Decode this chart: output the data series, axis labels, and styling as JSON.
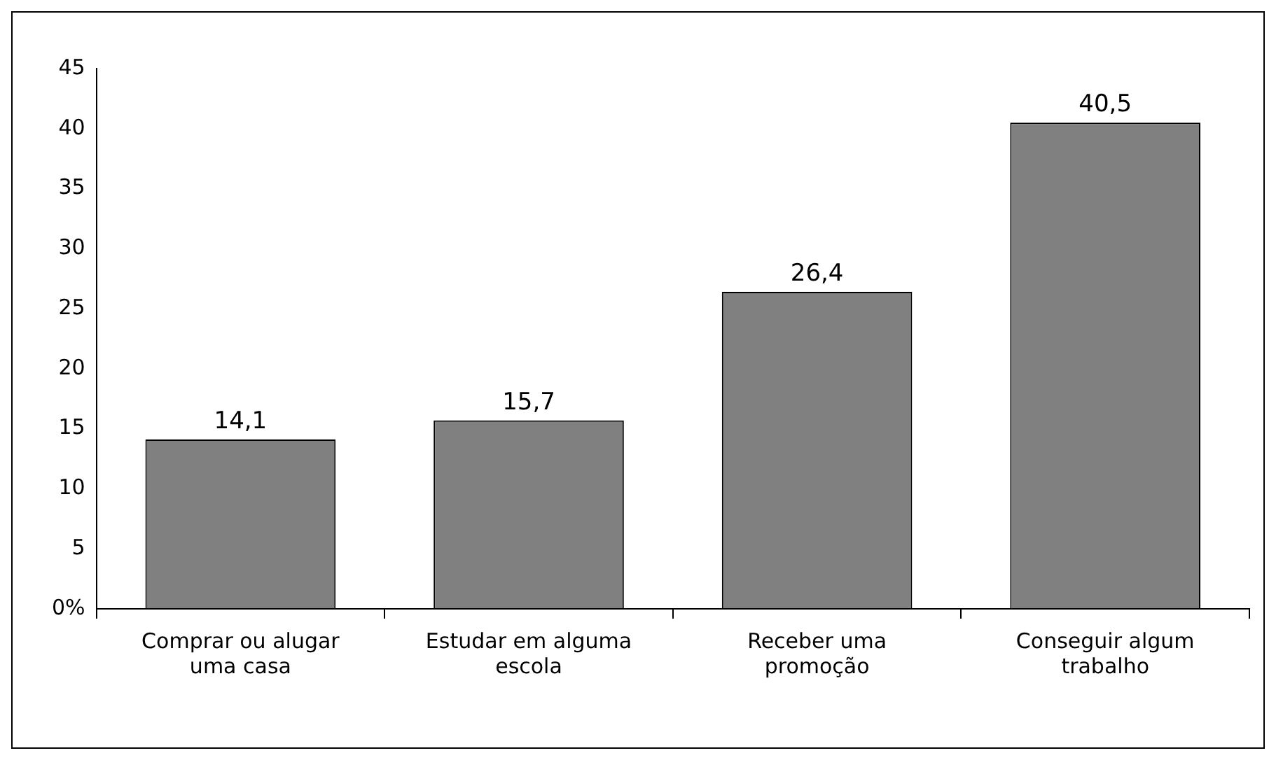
{
  "chart_data": {
    "type": "bar",
    "categories": [
      "Comprar ou alugar uma casa",
      "Estudar em alguma escola",
      "Receber uma promoção",
      "Conseguir algum trabalho"
    ],
    "values": [
      14.1,
      15.7,
      26.4,
      40.5
    ],
    "value_labels": [
      "14,1",
      "15,7",
      "26,4",
      "40,5"
    ],
    "color": "#808080",
    "ylim": [
      0,
      45
    ],
    "yticks": [
      {
        "value": 0,
        "label": "0%"
      },
      5,
      10,
      15,
      20,
      25,
      30,
      35,
      40,
      45
    ],
    "grid": false,
    "legend": false
  }
}
